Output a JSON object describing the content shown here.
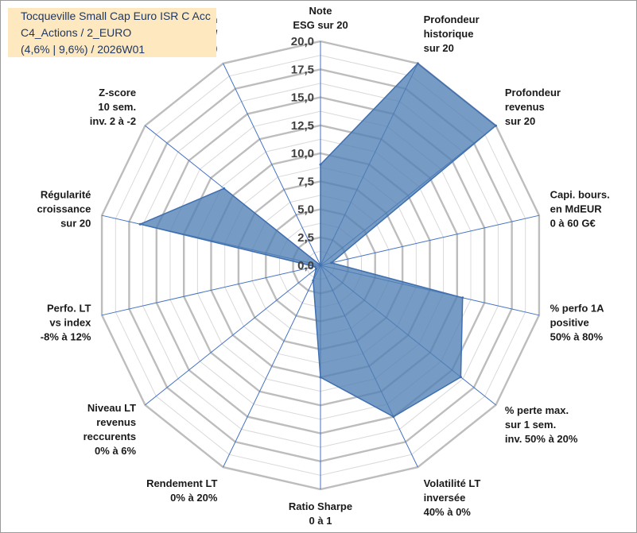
{
  "title_lines": [
    "Tocqueville Small Cap Euro ISR C Acc",
    "C4_Actions / 2_EURO",
    "(4,6% | 9,6%) / 2026W01"
  ],
  "colors": {
    "grid": "#c0c0c0",
    "spoke": "#4472c4",
    "fill": "#4f7fb4",
    "outline": "#3f6fb0",
    "title_bg": "#fde8bf",
    "title_text": "#1f3763",
    "label_text": "#1a1a1a"
  },
  "chart_data": {
    "type": "radar",
    "r_range": [
      0,
      20
    ],
    "grid": true,
    "ticks": [
      "0,0",
      "2,5",
      "5,0",
      "7,5",
      "10,0",
      "12,5",
      "15,0",
      "17,5",
      "20,0"
    ],
    "axes": [
      [
        "Note",
        "ESG sur 20"
      ],
      [
        "Profondeur",
        "historique",
        "sur 20"
      ],
      [
        "Profondeur",
        "revenus",
        "sur 20"
      ],
      [
        "Capi. bours.",
        "en MdEUR",
        "0 à 60 G€"
      ],
      [
        "% perfo 1A",
        "positive",
        "50% à 80%"
      ],
      [
        "% perte max.",
        "sur 1 sem.",
        "inv. 50% à 20%"
      ],
      [
        "Volatilité LT",
        "inversée",
        "40% à 0%"
      ],
      [
        "Ratio Sharpe",
        "0 à 1"
      ],
      [
        "Rendement LT",
        "0% à 20%"
      ],
      [
        "Niveau LT",
        "revenus",
        "reccurents",
        "0% à 6%"
      ],
      [
        "Perfo. LT",
        "vs index",
        "-8% à 12%"
      ],
      [
        "Régularité",
        "croissance",
        "sur 20"
      ],
      [
        "Z-score",
        "10 sem.",
        "inv. 2 à -2"
      ],
      [
        "Momentum",
        "Achat (20) /",
        "Vente (0)"
      ]
    ],
    "values": [
      9.0,
      20.0,
      20.0,
      1.0,
      13.0,
      16.0,
      15.0,
      10.0,
      1.5,
      0.5,
      0.5,
      16.5,
      11.0,
      0.0
    ]
  }
}
